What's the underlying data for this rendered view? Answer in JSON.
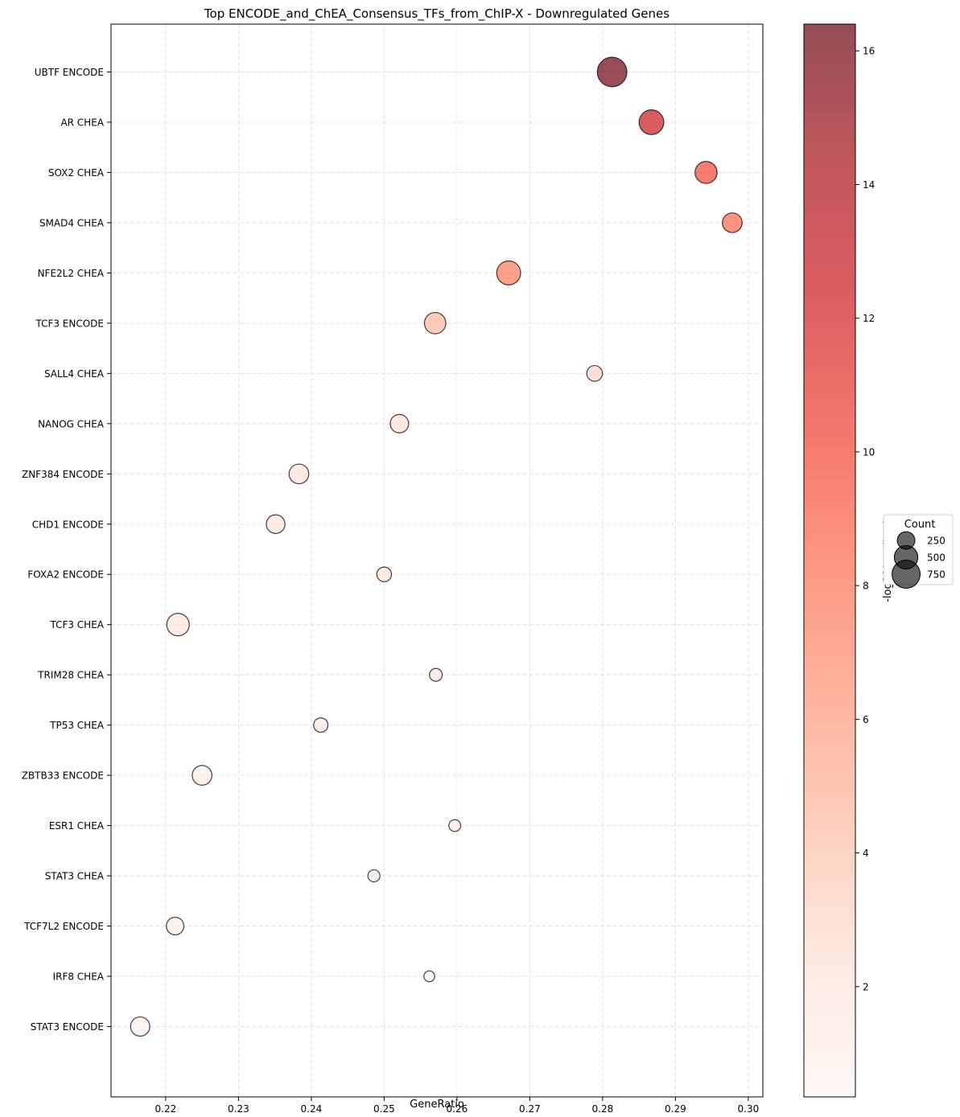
{
  "chart_data": {
    "type": "scatter",
    "title": "Top ENCODE_and_ChEA_Consensus_TFs_from_ChIP-X - Downregulated Genes",
    "xlabel": "GeneRatio",
    "ylabel": "",
    "xlim": [
      0.2125,
      0.302
    ],
    "x_ticks": [
      0.22,
      0.23,
      0.24,
      0.25,
      0.26,
      0.27,
      0.28,
      0.29,
      0.3
    ],
    "x_tick_labels": [
      "0.22",
      "0.23",
      "0.24",
      "0.25",
      "0.26",
      "0.27",
      "0.28",
      "0.29",
      "0.30"
    ],
    "grid": true,
    "points": [
      {
        "label": "UBTF ENCODE",
        "x": 0.2813,
        "count": 840,
        "neglog10_padj": 16.2
      },
      {
        "label": "AR CHEA",
        "x": 0.2867,
        "count": 560,
        "neglog10_padj": 12.6
      },
      {
        "label": "SOX2 CHEA",
        "x": 0.2942,
        "count": 430,
        "neglog10_padj": 10.0
      },
      {
        "label": "SMAD4 CHEA",
        "x": 0.2978,
        "count": 330,
        "neglog10_padj": 8.6
      },
      {
        "label": "NFE2L2 CHEA",
        "x": 0.2671,
        "count": 520,
        "neglog10_padj": 7.6
      },
      {
        "label": "TCF3 ENCODE",
        "x": 0.257,
        "count": 400,
        "neglog10_padj": 4.6
      },
      {
        "label": "SALL4 CHEA",
        "x": 0.2789,
        "count": 190,
        "neglog10_padj": 3.0
      },
      {
        "label": "NANOG CHEA",
        "x": 0.2521,
        "count": 280,
        "neglog10_padj": 2.5
      },
      {
        "label": "ZNF384 ENCODE",
        "x": 0.2383,
        "count": 330,
        "neglog10_padj": 2.3
      },
      {
        "label": "CHD1 ENCODE",
        "x": 0.2351,
        "count": 290,
        "neglog10_padj": 2.0
      },
      {
        "label": "FOXA2 ENCODE",
        "x": 0.25,
        "count": 160,
        "neglog10_padj": 2.0
      },
      {
        "label": "TCF3 CHEA",
        "x": 0.2217,
        "count": 450,
        "neglog10_padj": 1.7
      },
      {
        "label": "TRIM28 CHEA",
        "x": 0.2571,
        "count": 110,
        "neglog10_padj": 1.5
      },
      {
        "label": "TP53 CHEA",
        "x": 0.2413,
        "count": 150,
        "neglog10_padj": 1.4
      },
      {
        "label": "ZBTB33 ENCODE",
        "x": 0.225,
        "count": 330,
        "neglog10_padj": 1.3
      },
      {
        "label": "ESR1 CHEA",
        "x": 0.2597,
        "count": 90,
        "neglog10_padj": 1.2
      },
      {
        "label": "STAT3 CHEA",
        "x": 0.2486,
        "count": 95,
        "neglog10_padj": 1.1
      },
      {
        "label": "TCF7L2 ENCODE",
        "x": 0.2213,
        "count": 250,
        "neglog10_padj": 1.0
      },
      {
        "label": "IRF8 CHEA",
        "x": 0.2562,
        "count": 70,
        "neglog10_padj": 0.9
      },
      {
        "label": "STAT3 ENCODE",
        "x": 0.2165,
        "count": 310,
        "neglog10_padj": 0.8
      }
    ],
    "colorbar": {
      "label": "-log10(p.adjust)",
      "range": [
        0.35,
        16.4
      ],
      "ticks": [
        2,
        4,
        6,
        8,
        10,
        12,
        14,
        16
      ],
      "tick_labels": [
        "2",
        "4",
        "6",
        "8",
        "10",
        "12",
        "14",
        "16"
      ],
      "colormap": "Reds",
      "colors": [
        "#fff5f0",
        "#fee0d2",
        "#fcbba1",
        "#fc9272",
        "#fb6a4a",
        "#ef3b2c",
        "#cb181d",
        "#a50f15",
        "#67000d"
      ],
      "alpha": 0.7
    },
    "size_legend": {
      "title": "Count",
      "entries": [
        {
          "value": 250,
          "label": "250"
        },
        {
          "value": 500,
          "label": "500"
        },
        {
          "value": 750,
          "label": "750"
        }
      ]
    }
  }
}
